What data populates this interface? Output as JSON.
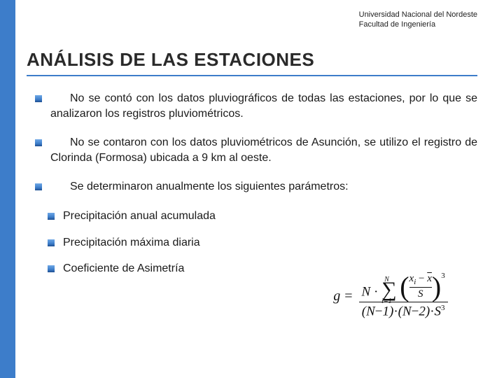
{
  "header": {
    "line1": "Universidad Nacional del Nordeste",
    "line2": "Facultad de Ingeniería"
  },
  "title": "ANÁLISIS DE LAS ESTACIONES",
  "paragraphs": {
    "p1": "No se contó con los datos pluviográficos de todas las estaciones, por lo que se analizaron los registros pluviométricos.",
    "p2": "No se contaron con los datos pluviométricos de Asunción, se utilizo el registro de Clorinda (Formosa) ubicada a 9 km al oeste.",
    "p3": "Se determinaron anualmente los siguientes parámetros:"
  },
  "sub": {
    "s1": "Precipitación anual acumulada",
    "s2": "Precipitación máxima diaria",
    "s3": "Coeficiente de Asimetría"
  },
  "formula": {
    "lhs": "g",
    "num_N": "N",
    "sigma_top": "N",
    "sigma_bot": "i=1",
    "xi": "x",
    "xi_sub": "i",
    "xbar": "x",
    "cube": "3",
    "den_l": "N",
    "den_minus": "−",
    "den_1": "1",
    "den_2": "2",
    "S": "S",
    "S_exp": "3"
  },
  "colors": {
    "accent": "#3d7dca",
    "text": "#1a1a1a"
  }
}
